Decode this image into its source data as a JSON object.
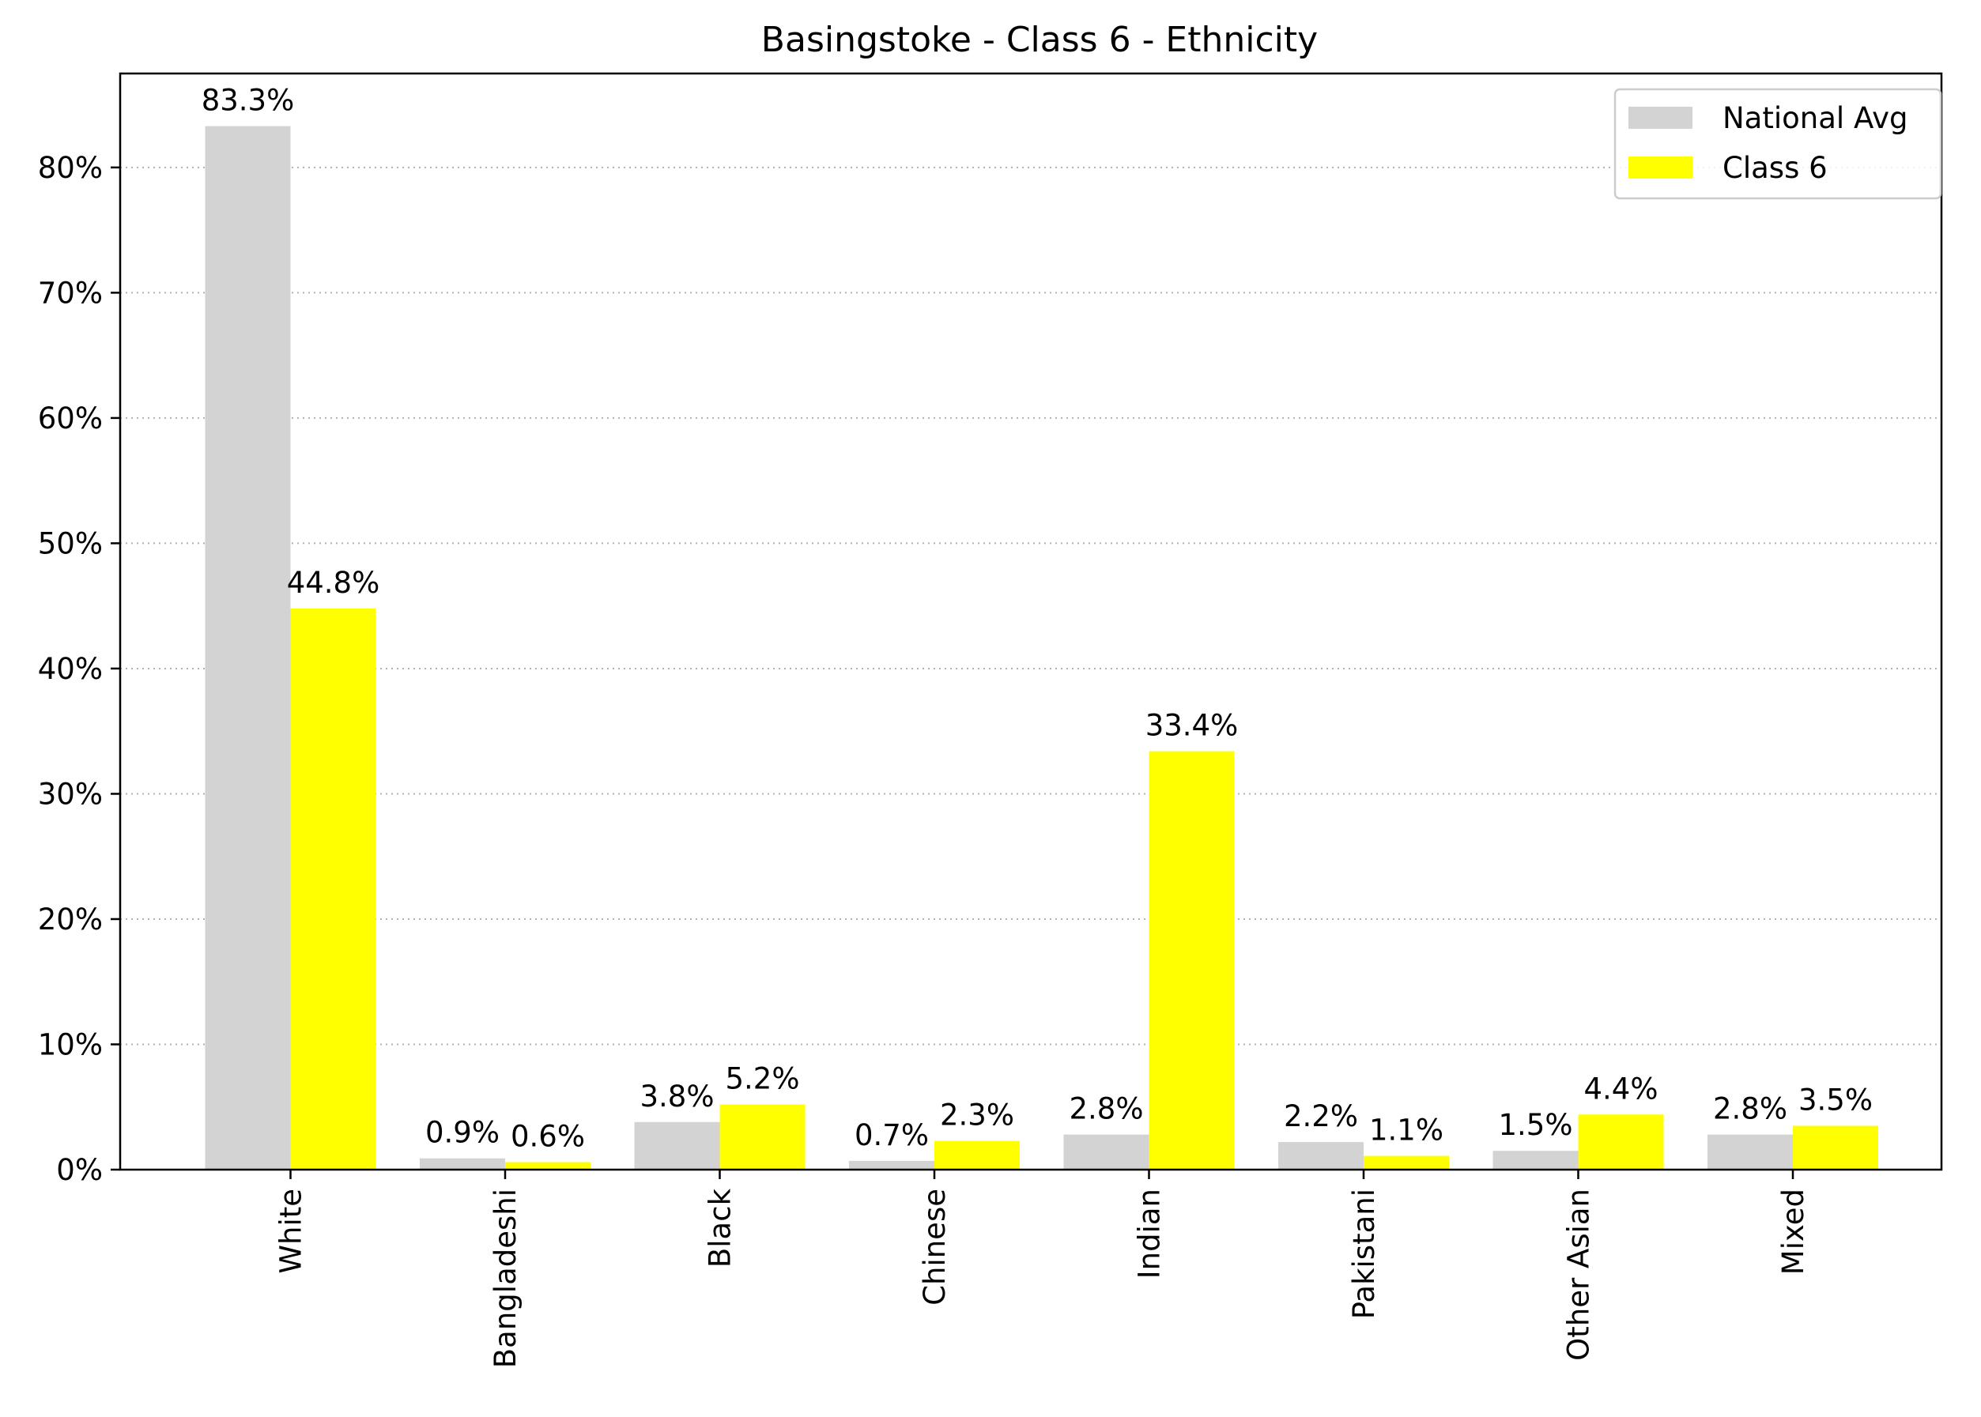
{
  "chart_data": {
    "type": "bar",
    "title": "Basingstoke - Class 6 - Ethnicity",
    "xlabel": "",
    "ylabel": "",
    "categories": [
      "White",
      "Bangladeshi",
      "Black",
      "Chinese",
      "Indian",
      "Pakistani",
      "Other Asian",
      "Mixed"
    ],
    "series": [
      {
        "name": "National Avg",
        "color": "#d3d3d3",
        "values": [
          83.3,
          0.9,
          3.8,
          0.7,
          2.8,
          2.2,
          1.5,
          2.8
        ],
        "labels": [
          "83.3%",
          "0.9%",
          "3.8%",
          "0.7%",
          "2.8%",
          "2.2%",
          "1.5%",
          "2.8%"
        ]
      },
      {
        "name": "Class 6",
        "color": "#ffff00",
        "values": [
          44.8,
          0.6,
          5.2,
          2.3,
          33.4,
          1.1,
          4.4,
          3.5
        ],
        "labels": [
          "44.8%",
          "0.6%",
          "5.2%",
          "2.3%",
          "33.4%",
          "1.1%",
          "4.4%",
          "3.5%"
        ]
      }
    ],
    "ylim": [
      0,
      87.5
    ],
    "yticks": [
      0,
      10,
      20,
      30,
      40,
      50,
      60,
      70,
      80
    ],
    "ytick_labels": [
      "0%",
      "10%",
      "20%",
      "30%",
      "40%",
      "50%",
      "60%",
      "70%",
      "80%"
    ],
    "grid": "horizontal dotted",
    "legend_position": "top-right"
  }
}
